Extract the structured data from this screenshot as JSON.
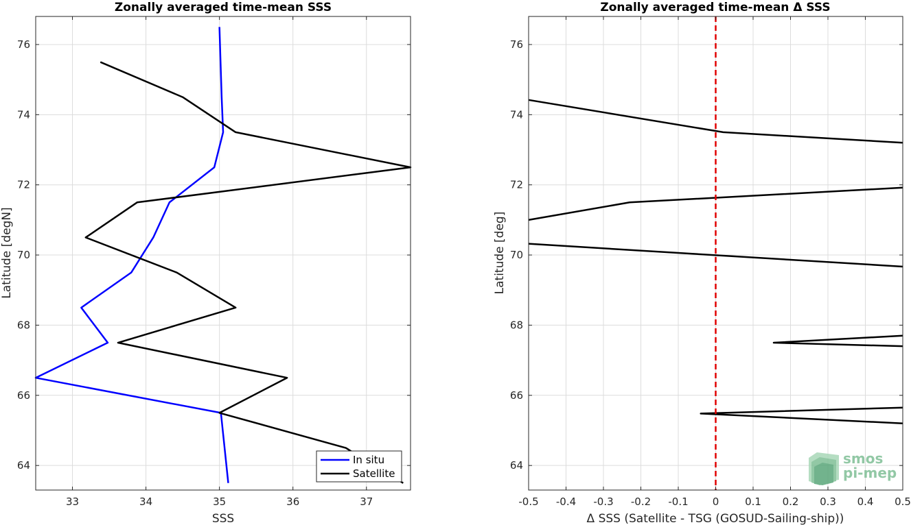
{
  "chart_data": [
    {
      "type": "line",
      "title": "Zonally averaged time-mean SSS",
      "xlabel": "SSS",
      "ylabel": "Latitude [degN]",
      "xlim": [
        32.5,
        37.6
      ],
      "ylim": [
        63.3,
        76.8
      ],
      "xticks": [
        33,
        34,
        35,
        36,
        37
      ],
      "yticks": [
        64,
        66,
        68,
        70,
        72,
        74,
        76
      ],
      "grid": true,
      "legend": "bottom-right",
      "series": [
        {
          "name": "In situ",
          "color": "#0000ff",
          "x": [
            35.0,
            35.03,
            35.05,
            34.93,
            34.32,
            34.1,
            33.8,
            33.12,
            33.48,
            32.5,
            35.02,
            35.12
          ],
          "y": [
            76.5,
            74.5,
            73.5,
            72.5,
            71.5,
            70.5,
            69.5,
            68.5,
            67.5,
            66.5,
            65.5,
            63.5
          ]
        },
        {
          "name": "Satellite",
          "color": "#000000",
          "x": [
            33.38,
            34.5,
            35.22,
            37.6,
            33.88,
            33.18,
            34.42,
            35.22,
            33.62,
            35.92,
            35.0,
            36.72,
            37.5
          ],
          "y": [
            75.5,
            74.5,
            73.5,
            72.5,
            71.5,
            70.5,
            69.5,
            68.5,
            67.5,
            66.5,
            65.5,
            64.5,
            63.5
          ]
        }
      ]
    },
    {
      "type": "line",
      "title": "Zonally averaged time-mean Δ SSS",
      "xlabel": "Δ SSS (Satellite - TSG (GOSUD-Sailing-ship))",
      "ylabel": "Latitude [deg]",
      "xlim": [
        -0.5,
        0.5
      ],
      "ylim": [
        63.3,
        76.8
      ],
      "xticks": [
        -0.5,
        -0.4,
        -0.3,
        -0.2,
        -0.1,
        0,
        0.1,
        0.2,
        0.3,
        0.4,
        0.5
      ],
      "xticklabels": [
        "-0.5",
        "-0.4",
        "-0.3",
        "-0.2",
        "-0.1",
        "0",
        "0.1",
        "0.2",
        "0.3",
        "0.4",
        "0.5"
      ],
      "yticks": [
        64,
        66,
        68,
        70,
        72,
        74,
        76
      ],
      "grid": true,
      "zero_line_color": "#e00000",
      "segments": [
        {
          "x": [
            -0.5,
            0.02,
            0.5
          ],
          "y": [
            74.42,
            73.5,
            73.2
          ]
        },
        {
          "x": [
            -0.5,
            -0.23,
            0.5
          ],
          "y": [
            71.0,
            71.5,
            71.92
          ]
        },
        {
          "x": [
            -0.5,
            0.5
          ],
          "y": [
            70.32,
            69.67
          ]
        },
        {
          "x": [
            0.5,
            0.155,
            0.5
          ],
          "y": [
            67.7,
            67.5,
            67.4
          ]
        },
        {
          "x": [
            0.5,
            -0.04,
            0.5
          ],
          "y": [
            65.65,
            65.48,
            65.2
          ]
        }
      ]
    }
  ],
  "watermark": {
    "line1": "smos",
    "line2": "pi-mep",
    "color": "#7fbf96"
  }
}
